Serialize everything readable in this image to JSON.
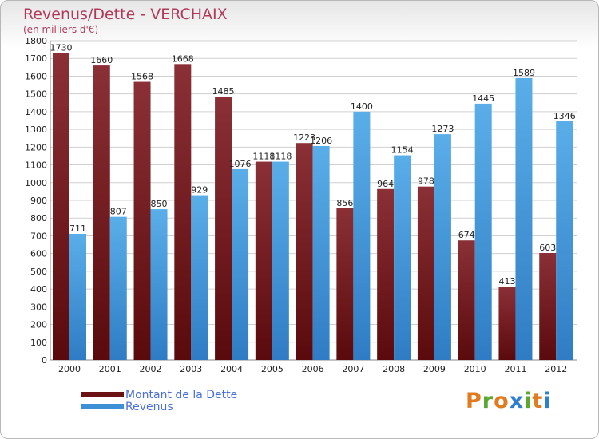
{
  "chart_data": {
    "type": "bar",
    "title": "Revenus/Dette - VERCHAIX",
    "subtitle": "(en milliers d'€)",
    "categories": [
      "2000",
      "2001",
      "2002",
      "2003",
      "2004",
      "2005",
      "2006",
      "2007",
      "2008",
      "2009",
      "2010",
      "2011",
      "2012"
    ],
    "series": [
      {
        "name": "Montant de la Dette",
        "color": "#6b1215",
        "values": [
          1730,
          1660,
          1568,
          1668,
          1485,
          1118,
          1223,
          856,
          964,
          978,
          674,
          413,
          603
        ]
      },
      {
        "name": "Revenus",
        "color": "#3d8fd6",
        "values": [
          711,
          807,
          850,
          929,
          1076,
          1118,
          1206,
          1400,
          1154,
          1273,
          1445,
          1589,
          1346
        ]
      }
    ],
    "ylim": [
      0,
      1800
    ],
    "ytick_step": 100,
    "grid": true,
    "legend_placement": "bottom-left"
  },
  "watermark": {
    "letters": [
      "P",
      "r",
      "o",
      "x",
      "i",
      "t",
      "i"
    ],
    "colors": [
      "#e07b1f",
      "#5aa832",
      "#e07b1f",
      "#2f7fd1",
      "#5aa832",
      "#e07b1f",
      "#2f7fd1"
    ]
  }
}
